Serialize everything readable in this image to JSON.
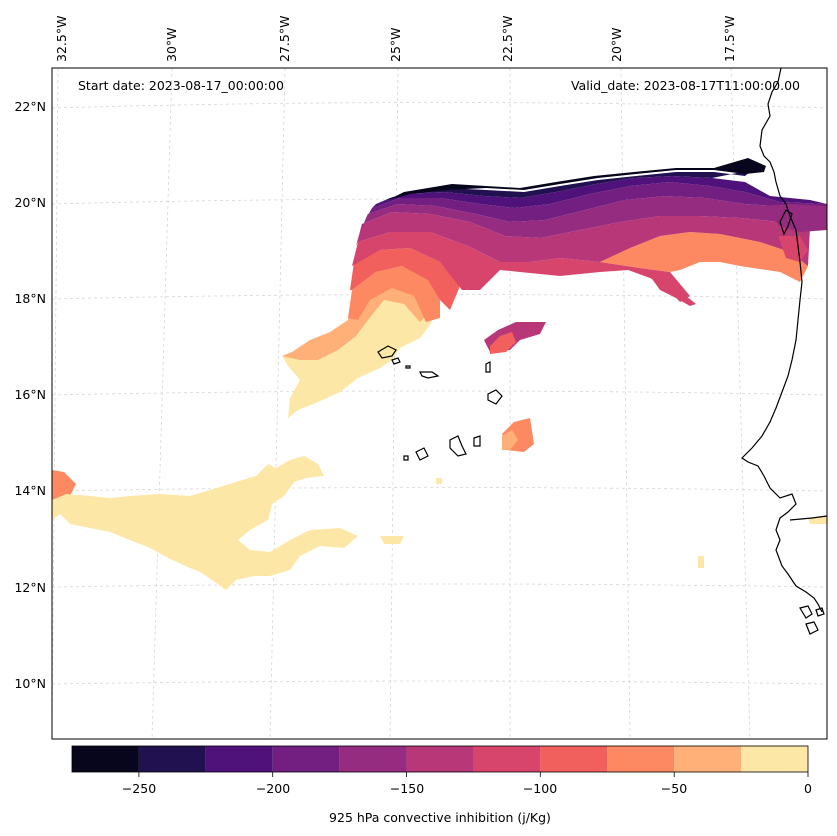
{
  "header": {
    "start_date": "Start date: 2023-08-17_00:00:00",
    "valid_date": "Valid_date: 2023-08-17T11:00:00.00"
  },
  "axes": {
    "lon_labels": [
      "32.5°W",
      "30°W",
      "27.5°W",
      "25°W",
      "22.5°W",
      "20°W",
      "17.5°W"
    ],
    "lat_labels": [
      "22°N",
      "20°N",
      "18°N",
      "16°N",
      "14°N",
      "12°N",
      "10°N"
    ],
    "gridlines": true
  },
  "colorbar": {
    "label": "925 hPa convective inhibition (j/Kg)",
    "tick_labels": [
      "−250",
      "−200",
      "−150",
      "−100",
      "−50",
      "0"
    ],
    "levels": [
      -275,
      -250,
      -225,
      -200,
      -175,
      -150,
      -125,
      -100,
      -75,
      -50,
      -25,
      0
    ],
    "colors": [
      "#07061c",
      "#221150",
      "#4f127b",
      "#721f81",
      "#952c80",
      "#b73779",
      "#d8456c",
      "#f1605d",
      "#fc8961",
      "#feb078",
      "#fde7a7"
    ]
  }
}
